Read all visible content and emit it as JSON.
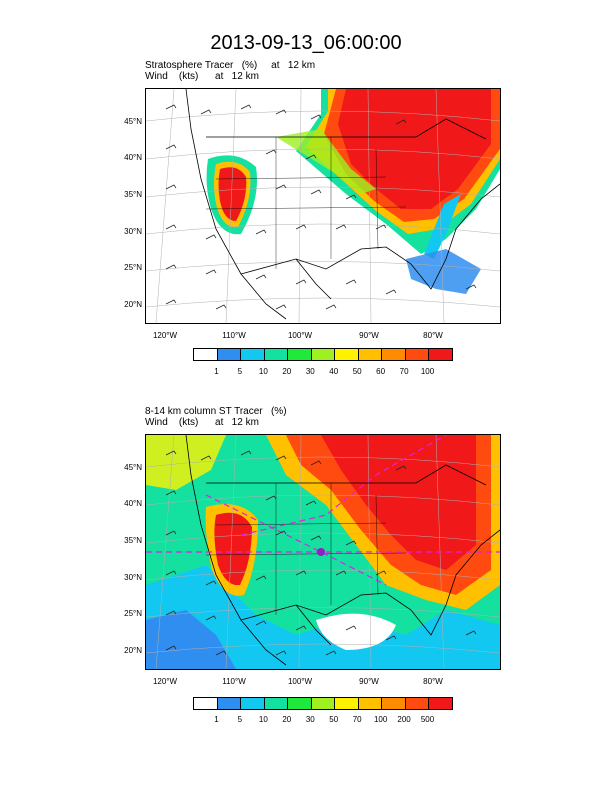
{
  "title": "2013-09-13_06:00:00",
  "panel1": {
    "line1": "Stratosphere Tracer   (%)     at   12 km",
    "line2": "Wind    (kts)      at   12 km",
    "lat_labels": [
      "45°N",
      "40°N",
      "35°N",
      "30°N",
      "25°N",
      "20°N"
    ],
    "lon_labels": [
      "120°W",
      "110°W",
      "100°W",
      "90°W",
      "80°W"
    ],
    "colorbar": {
      "colors": [
        "#ffffff",
        "#2f8ef0",
        "#12c8f0",
        "#14e0a0",
        "#1fea3c",
        "#9ef020",
        "#fff200",
        "#ffc000",
        "#ff8c00",
        "#ff4a10",
        "#f01818"
      ],
      "labels": [
        "1",
        "5",
        "10",
        "20",
        "30",
        "40",
        "50",
        "60",
        "70",
        "100"
      ]
    }
  },
  "panel2": {
    "line1": "8-14 km column ST Tracer   (%)",
    "line2": "Wind    (kts)      at   12 km",
    "lat_labels": [
      "45°N",
      "40°N",
      "35°N",
      "30°N",
      "25°N",
      "20°N"
    ],
    "lon_labels": [
      "120°W",
      "110°W",
      "100°W",
      "90°W",
      "80°W"
    ],
    "colorbar": {
      "colors": [
        "#ffffff",
        "#2f8ef0",
        "#12c8f0",
        "#14e0a0",
        "#1fea3c",
        "#9ef020",
        "#fff200",
        "#ffc000",
        "#ff8c00",
        "#ff4a10",
        "#f01818"
      ],
      "labels": [
        "1",
        "5",
        "10",
        "20",
        "30",
        "50",
        "70",
        "100",
        "200",
        "500"
      ]
    }
  }
}
